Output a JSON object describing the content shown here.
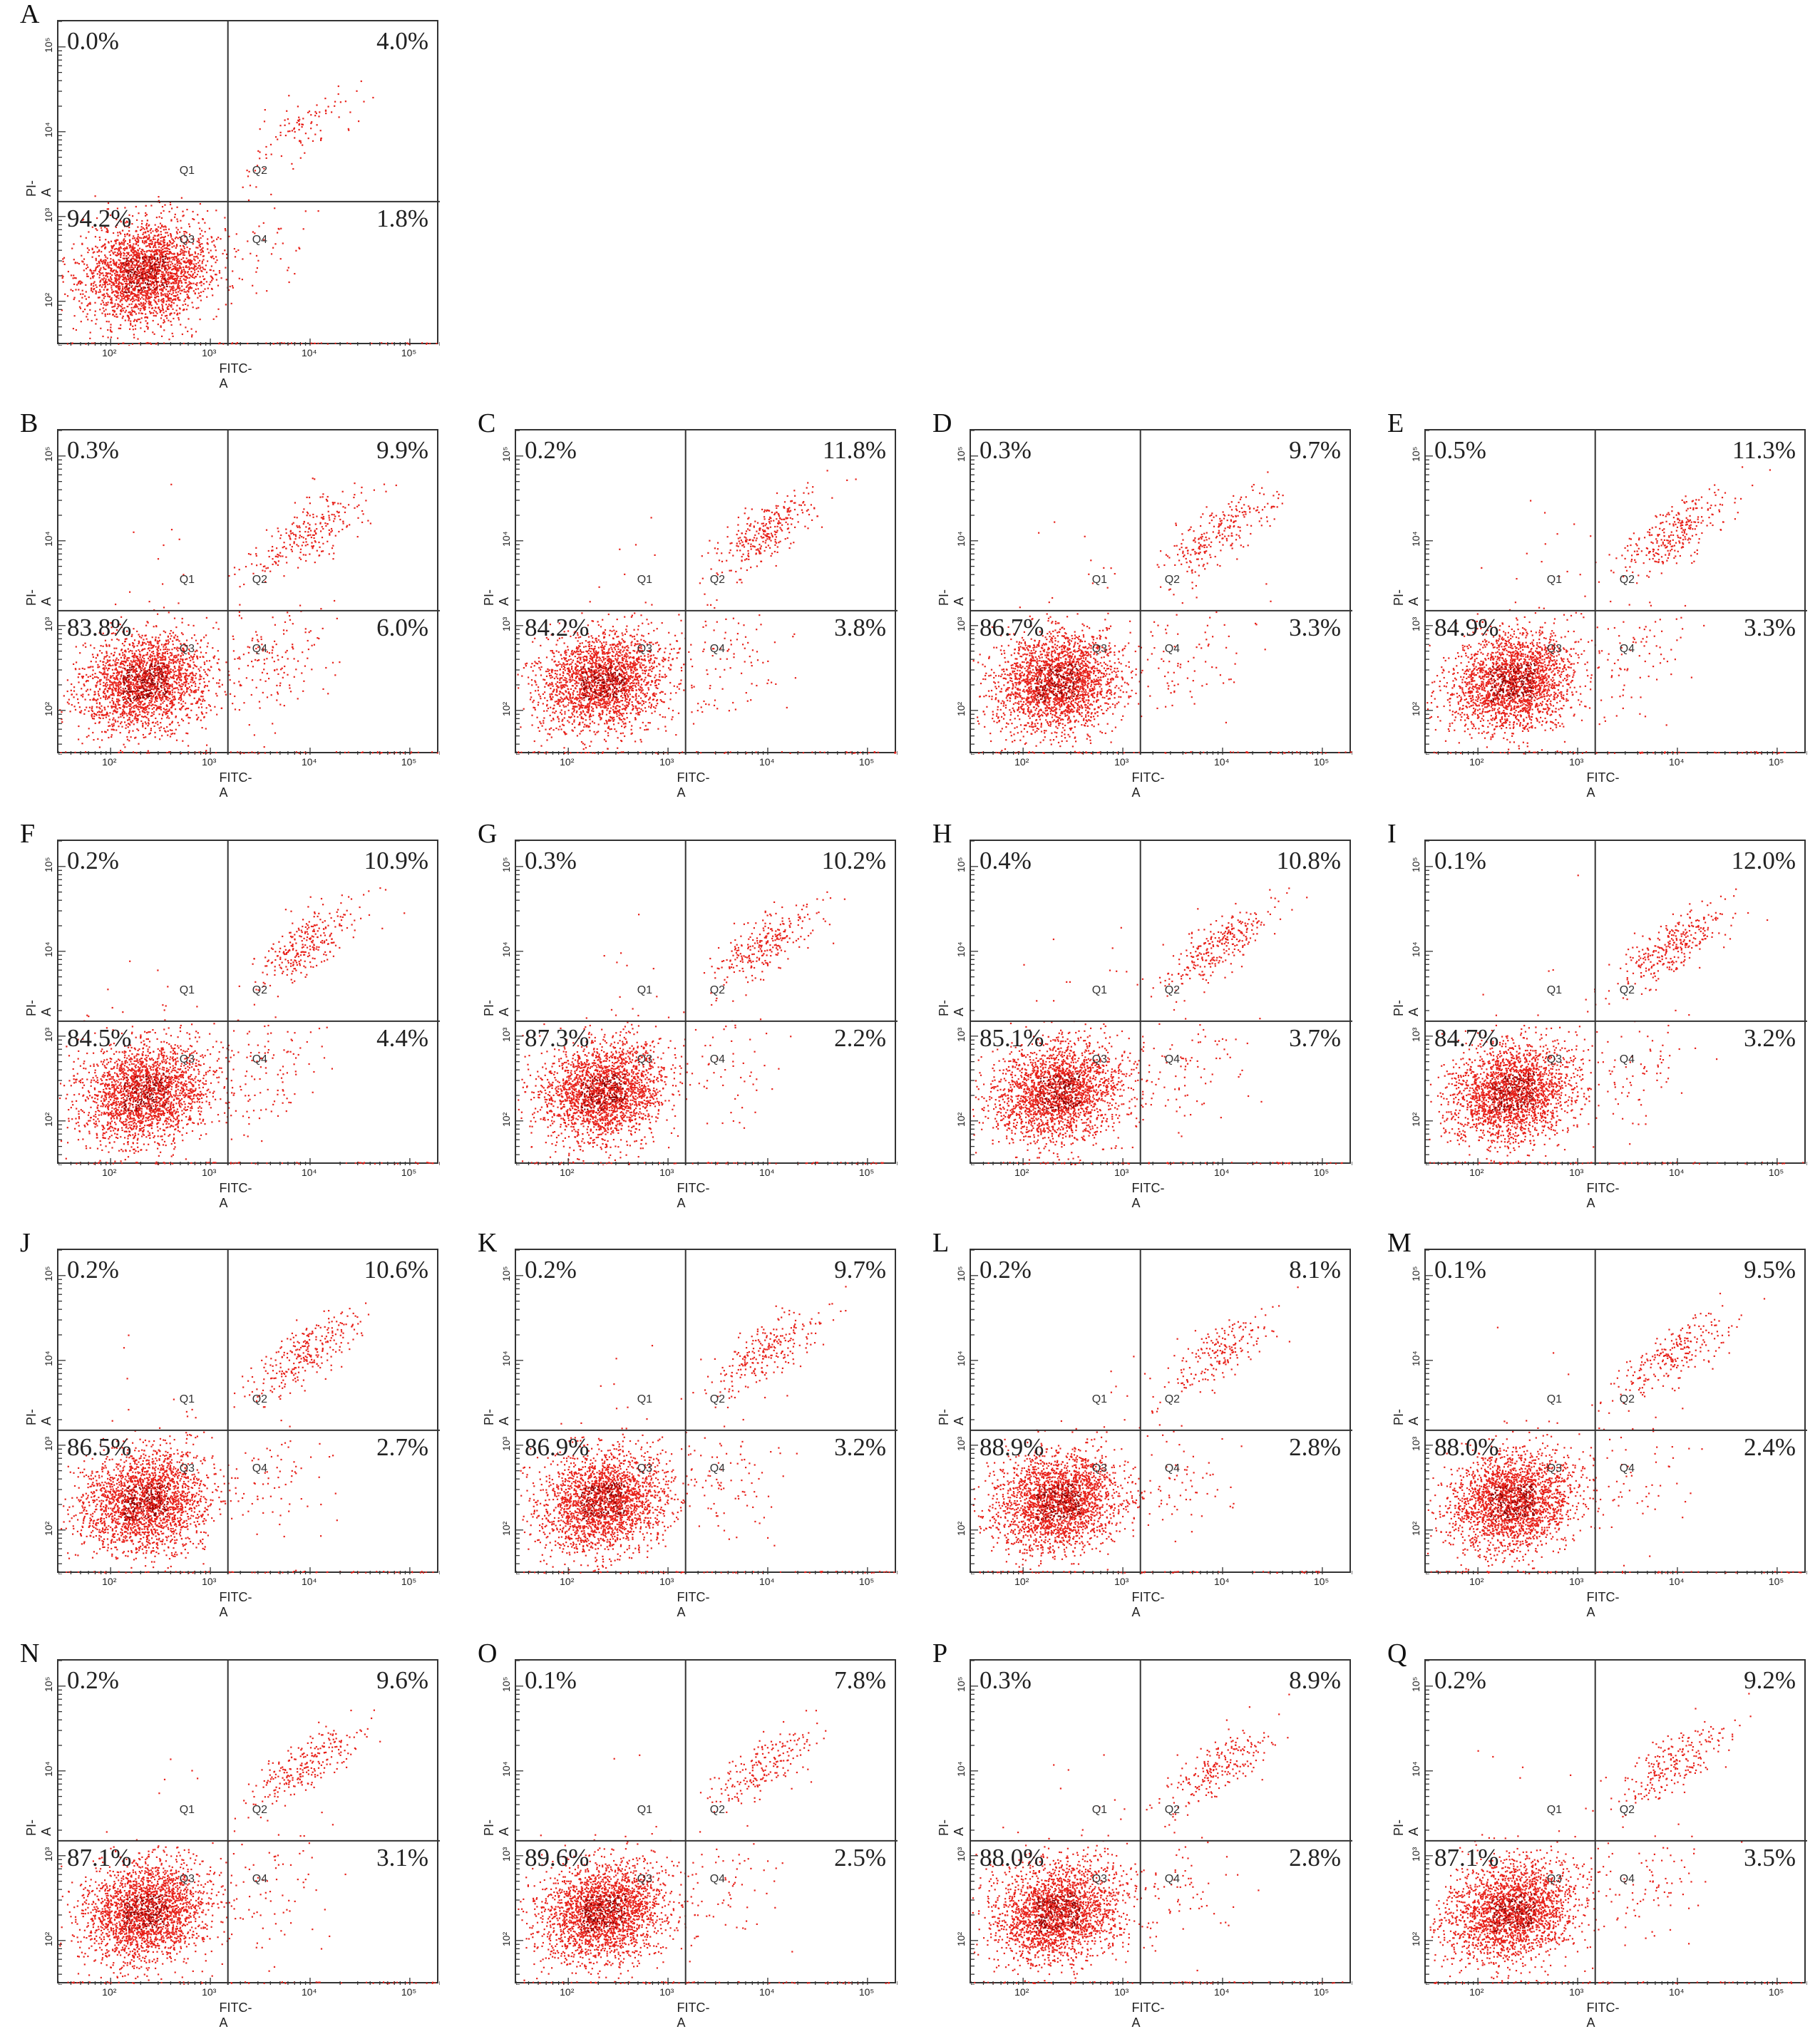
{
  "figure": {
    "colors": {
      "dots": "#e8221b",
      "dots_dense": "#8b0000",
      "frame": "#333333",
      "gate": "#333333"
    }
  },
  "chart_data": {
    "type": "scatter",
    "description_of_axes": {
      "xlabel": "FITC-A",
      "ylabel": "PI-A",
      "x_scale": "log",
      "y_scale": "log",
      "x_ticks": [
        "10²",
        "10³",
        "10⁴",
        "10⁵"
      ],
      "y_ticks": [
        "10²",
        "10³",
        "10⁴",
        "10⁵"
      ],
      "x_gate": 1500,
      "y_gate": 1500,
      "xlim": [
        30,
        200000
      ],
      "ylim": [
        30,
        200000
      ]
    },
    "quadrant_labels": [
      "Q1",
      "Q2",
      "Q3",
      "Q4"
    ],
    "panels": [
      {
        "id": "A",
        "Q1": "0.0%",
        "Q2": "4.0%",
        "Q3": "94.2%",
        "Q4": "1.8%"
      },
      {
        "id": "B",
        "Q1": "0.3%",
        "Q2": "9.9%",
        "Q3": "83.8%",
        "Q4": "6.0%"
      },
      {
        "id": "C",
        "Q1": "0.2%",
        "Q2": "11.8%",
        "Q3": "84.2%",
        "Q4": "3.8%"
      },
      {
        "id": "D",
        "Q1": "0.3%",
        "Q2": "9.7%",
        "Q3": "86.7%",
        "Q4": "3.3%"
      },
      {
        "id": "E",
        "Q1": "0.5%",
        "Q2": "11.3%",
        "Q3": "84.9%",
        "Q4": "3.3%"
      },
      {
        "id": "F",
        "Q1": "0.2%",
        "Q2": "10.9%",
        "Q3": "84.5%",
        "Q4": "4.4%"
      },
      {
        "id": "G",
        "Q1": "0.3%",
        "Q2": "10.2%",
        "Q3": "87.3%",
        "Q4": "2.2%"
      },
      {
        "id": "H",
        "Q1": "0.4%",
        "Q2": "10.8%",
        "Q3": "85.1%",
        "Q4": "3.7%"
      },
      {
        "id": "I",
        "Q1": "0.1%",
        "Q2": "12.0%",
        "Q3": "84.7%",
        "Q4": "3.2%"
      },
      {
        "id": "J",
        "Q1": "0.2%",
        "Q2": "10.6%",
        "Q3": "86.5%",
        "Q4": "2.7%"
      },
      {
        "id": "K",
        "Q1": "0.2%",
        "Q2": "9.7%",
        "Q3": "86.9%",
        "Q4": "3.2%"
      },
      {
        "id": "L",
        "Q1": "0.2%",
        "Q2": "8.1%",
        "Q3": "88.9%",
        "Q4": "2.8%"
      },
      {
        "id": "M",
        "Q1": "0.1%",
        "Q2": "9.5%",
        "Q3": "88.0%",
        "Q4": "2.4%"
      },
      {
        "id": "N",
        "Q1": "0.2%",
        "Q2": "9.6%",
        "Q3": "87.1%",
        "Q4": "3.1%"
      },
      {
        "id": "O",
        "Q1": "0.1%",
        "Q2": "7.8%",
        "Q3": "89.6%",
        "Q4": "2.5%"
      },
      {
        "id": "P",
        "Q1": "0.3%",
        "Q2": "8.9%",
        "Q3": "88.0%",
        "Q4": "2.8%"
      },
      {
        "id": "Q",
        "Q1": "0.2%",
        "Q2": "9.2%",
        "Q3": "87.1%",
        "Q4": "3.5%"
      }
    ]
  }
}
